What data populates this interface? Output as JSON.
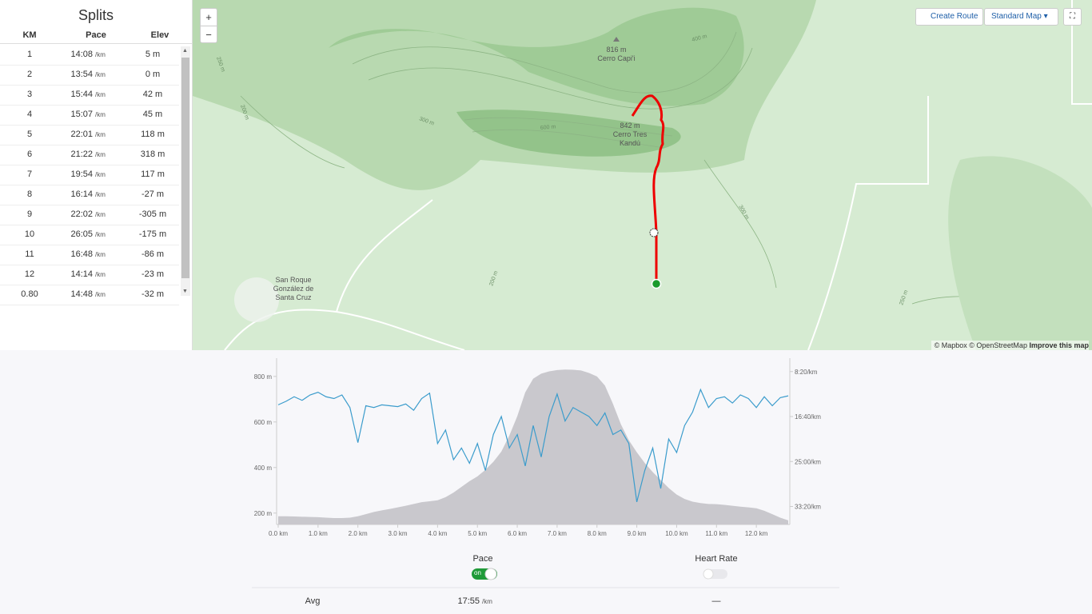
{
  "splits": {
    "title": "Splits",
    "headers": [
      "KM",
      "Pace",
      "Elev"
    ],
    "rows": [
      [
        "1",
        "14:08",
        "/km",
        "5 m"
      ],
      [
        "2",
        "13:54",
        "/km",
        "0 m"
      ],
      [
        "3",
        "15:44",
        "/km",
        "42 m"
      ],
      [
        "4",
        "15:07",
        "/km",
        "45 m"
      ],
      [
        "5",
        "22:01",
        "/km",
        "118 m"
      ],
      [
        "6",
        "21:22",
        "/km",
        "318 m"
      ],
      [
        "7",
        "19:54",
        "/km",
        "117 m"
      ],
      [
        "8",
        "16:14",
        "/km",
        "-27 m"
      ],
      [
        "9",
        "22:02",
        "/km",
        "-305 m"
      ],
      [
        "10",
        "26:05",
        "/km",
        "-175 m"
      ],
      [
        "11",
        "16:48",
        "/km",
        "-86 m"
      ],
      [
        "12",
        "14:14",
        "/km",
        "-23 m"
      ],
      [
        "0.80",
        "14:48",
        "/km",
        "-32 m"
      ]
    ]
  },
  "map": {
    "zoom_in": "+",
    "zoom_out": "−",
    "create_route": "Create Route",
    "map_style": "Standard Map",
    "peaks": [
      {
        "elevation": "816 m",
        "name": "Cerro Capi'i"
      },
      {
        "elevation": "842 m",
        "name": "Cerro Tres",
        "name2": "Kandú"
      }
    ],
    "town": [
      "San Roque",
      "González de",
      "Santa Cruz"
    ],
    "contour_labels": [
      "250 m",
      "200 m",
      "300 m",
      "600 m",
      "400 m",
      "300 m",
      "200 m",
      "250 m"
    ],
    "attribution": "© Mapbox © OpenStreetMap",
    "improve": "Improve this map"
  },
  "chart_data": {
    "type": "line",
    "x": [
      0,
      0.2,
      0.4,
      0.6,
      0.8,
      1,
      1.2,
      1.4,
      1.6,
      1.8,
      2,
      2.2,
      2.4,
      2.6,
      2.8,
      3,
      3.2,
      3.4,
      3.6,
      3.8,
      4,
      4.2,
      4.4,
      4.6,
      4.8,
      5,
      5.2,
      5.4,
      5.6,
      5.8,
      6,
      6.2,
      6.4,
      6.6,
      6.8,
      7,
      7.2,
      7.4,
      7.6,
      7.8,
      8,
      8.2,
      8.4,
      8.6,
      8.8,
      9,
      9.2,
      9.4,
      9.6,
      9.8,
      10,
      10.2,
      10.4,
      10.6,
      10.8,
      11,
      11.2,
      11.4,
      11.6,
      11.8,
      12,
      12.2,
      12.4,
      12.6,
      12.8
    ],
    "series": [
      {
        "color": "#c9c8cd",
        "values": [
          186,
          186,
          185,
          184,
          183,
          182,
          180,
          178,
          178,
          180,
          186,
          195,
          205,
          212,
          218,
          225,
          232,
          240,
          248,
          252,
          256,
          270,
          290,
          315,
          340,
          361,
          390,
          425,
          470,
          540,
          625,
          730,
          790,
          812,
          822,
          828,
          830,
          829,
          826,
          815,
          800,
          760,
          680,
          590,
          520,
          467,
          420,
          380,
          345,
          310,
          281,
          262,
          250,
          244,
          240,
          239,
          236,
          232,
          228,
          225,
          221,
          210,
          195,
          180,
          168
        ]
      },
      {
        "name": "Pace",
        "color": "#3b9ccc",
        "axis": "y2",
        "values": [
          870,
          830,
          780,
          820,
          760,
          730,
          780,
          800,
          760,
          900,
          1290,
          880,
          900,
          870,
          880,
          890,
          860,
          930,
          800,
          740,
          1300,
          1150,
          1480,
          1350,
          1520,
          1300,
          1600,
          1200,
          1000,
          1350,
          1200,
          1550,
          1100,
          1450,
          1000,
          750,
          1050,
          900,
          950,
          1000,
          1100,
          960,
          1200,
          1150,
          1300,
          1950,
          1600,
          1350,
          1800,
          1250,
          1400,
          1100,
          950,
          700,
          900,
          800,
          780,
          850,
          760,
          800,
          900,
          780,
          880,
          790,
          770
        ]
      }
    ],
    "xlim": [
      0,
      12.8
    ],
    "xticks": [
      {
        "value": 0,
        "label": "0.0 km"
      },
      {
        "value": 1,
        "label": "1.0 km"
      },
      {
        "value": 2,
        "label": "2.0 km"
      },
      {
        "value": 3,
        "label": "3.0 km"
      },
      {
        "value": 4,
        "label": "4.0 km"
      },
      {
        "value": 5,
        "label": "5.0 km"
      },
      {
        "value": 6,
        "label": "6.0 km"
      },
      {
        "value": 7,
        "label": "7.0 km"
      },
      {
        "value": 8,
        "label": "8.0 km"
      },
      {
        "value": 9,
        "label": "9.0 km"
      },
      {
        "value": 10,
        "label": "10.0 km"
      },
      {
        "value": 11,
        "label": "11.0 km"
      },
      {
        "value": 12,
        "label": "12.0 km"
      }
    ],
    "ylim": [
      150,
      845
    ],
    "yticks": [
      {
        "value": 200,
        "label": "200 m"
      },
      {
        "value": 400,
        "label": "400 m"
      },
      {
        "value": 600,
        "label": "600 m"
      },
      {
        "value": 800,
        "label": "800 m"
      }
    ],
    "y2lim": [
      2200,
      440
    ],
    "y2ticks": [
      {
        "value": 500,
        "label": "8:20/km"
      },
      {
        "value": 1000,
        "label": "16:40/km"
      },
      {
        "value": 1500,
        "label": "25:00/km"
      },
      {
        "value": 2000,
        "label": "33:20/km"
      }
    ]
  },
  "toggles": [
    {
      "state": "on"
    },
    {
      "label": "Heart Rate"
    }
  ],
  "summary": {
    "label": "Avg",
    "pace": "17:55",
    "unit": "/km",
    "heart_rate": "—"
  }
}
